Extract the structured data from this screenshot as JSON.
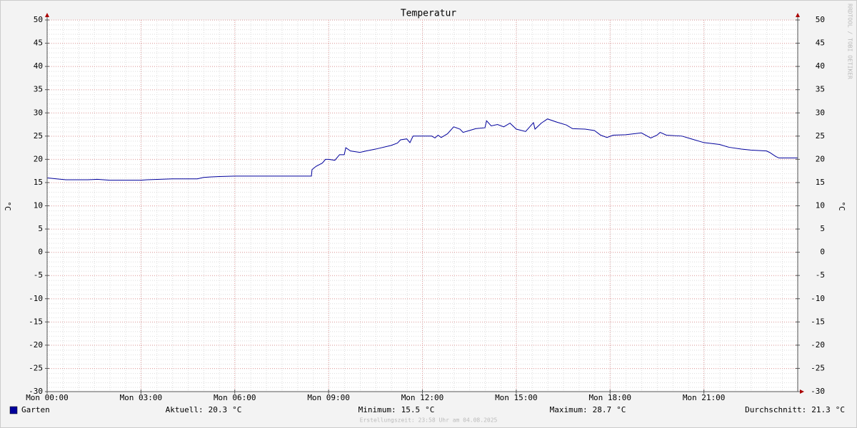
{
  "chart_data": {
    "type": "line",
    "title": "Temperatur",
    "ylabel": "°C",
    "y2label": "°C",
    "xlim": [
      0,
      24
    ],
    "xticks": [
      {
        "value": 0,
        "label": "Mon 00:00"
      },
      {
        "value": 3,
        "label": "Mon 03:00"
      },
      {
        "value": 6,
        "label": "Mon 06:00"
      },
      {
        "value": 9,
        "label": "Mon 09:00"
      },
      {
        "value": 12,
        "label": "Mon 12:00"
      },
      {
        "value": 15,
        "label": "Mon 15:00"
      },
      {
        "value": 18,
        "label": "Mon 18:00"
      },
      {
        "value": 21,
        "label": "Mon 21:00"
      }
    ],
    "ylim": [
      -30,
      50
    ],
    "yticks": [
      -30,
      -25,
      -20,
      -15,
      -10,
      -5,
      0,
      5,
      10,
      15,
      20,
      25,
      30,
      35,
      40,
      45,
      50
    ],
    "y2lim": [
      -30,
      50
    ],
    "y2ticks": [
      -30,
      -25,
      -20,
      -15,
      -10,
      -5,
      0,
      5,
      10,
      15,
      20,
      25,
      30,
      35,
      40,
      45,
      50
    ],
    "grid": true,
    "x": [
      0,
      0.3,
      0.6,
      1.3,
      1.6,
      2.0,
      3.0,
      3.2,
      3.6,
      4.0,
      4.8,
      5.0,
      5.2,
      5.5,
      6.0,
      7.0,
      8.0,
      8.45,
      8.47,
      8.6,
      8.8,
      8.9,
      9.0,
      9.2,
      9.35,
      9.5,
      9.55,
      9.7,
      10.0,
      10.2,
      10.5,
      11.0,
      11.2,
      11.3,
      11.5,
      11.6,
      11.7,
      12.0,
      12.3,
      12.4,
      12.5,
      12.6,
      12.8,
      13.0,
      13.2,
      13.3,
      13.5,
      13.7,
      14.0,
      14.05,
      14.2,
      14.4,
      14.6,
      14.8,
      15.0,
      15.3,
      15.55,
      15.6,
      15.8,
      16.0,
      16.3,
      16.6,
      16.8,
      17.2,
      17.5,
      17.7,
      17.9,
      18.1,
      18.5,
      19.0,
      19.3,
      19.5,
      19.6,
      19.8,
      20.3,
      20.6,
      21.0,
      21.5,
      21.8,
      22.2,
      22.5,
      23.0,
      23.1,
      23.3,
      23.4,
      24.0
    ],
    "series": [
      {
        "name": "Garten",
        "color": "#00009c",
        "values": [
          16.0,
          15.8,
          15.6,
          15.6,
          15.7,
          15.5,
          15.5,
          15.6,
          15.7,
          15.8,
          15.8,
          16.1,
          16.2,
          16.3,
          16.4,
          16.4,
          16.4,
          16.4,
          17.8,
          18.5,
          19.2,
          20.0,
          20.0,
          19.8,
          21.0,
          21.0,
          22.5,
          21.8,
          21.5,
          21.8,
          22.2,
          23.0,
          23.5,
          24.2,
          24.4,
          23.6,
          25.0,
          25.0,
          25.0,
          24.6,
          25.2,
          24.7,
          25.5,
          27.0,
          26.5,
          25.8,
          26.2,
          26.6,
          26.8,
          28.3,
          27.2,
          27.5,
          27.0,
          27.8,
          26.5,
          26.0,
          27.9,
          26.5,
          27.8,
          28.7,
          28.0,
          27.4,
          26.6,
          26.5,
          26.2,
          25.2,
          24.7,
          25.2,
          25.3,
          25.7,
          24.6,
          25.2,
          25.8,
          25.2,
          25.0,
          24.4,
          23.6,
          23.2,
          22.6,
          22.2,
          22.0,
          21.8,
          21.5,
          20.6,
          20.3,
          20.3
        ]
      }
    ],
    "stats": [
      {
        "label": "Aktuell:",
        "value": 20.3,
        "unit": "°C"
      },
      {
        "label": "Minimum:",
        "value": 15.5,
        "unit": "°C"
      },
      {
        "label": "Maximum:",
        "value": 28.7,
        "unit": "°C"
      },
      {
        "label": "Durchschnitt:",
        "value": 21.3,
        "unit": "°C"
      }
    ],
    "footer": "Erstellungszeit: 23:58 Uhr am 04.08.2025",
    "watermark": "RRDTOOL / TOBI OETIKER"
  }
}
